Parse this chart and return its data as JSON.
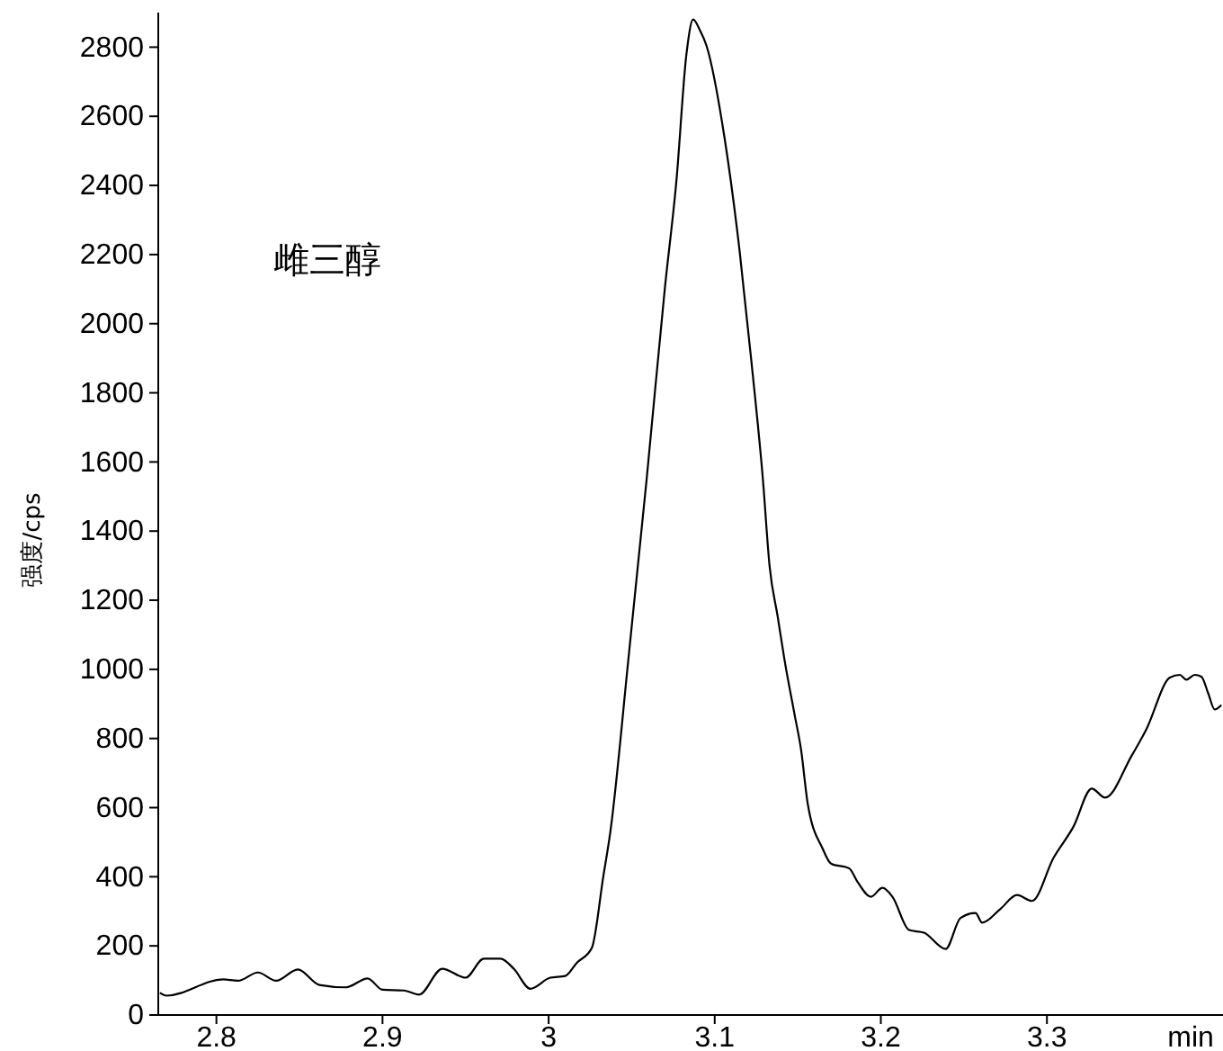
{
  "chart_data": {
    "type": "line",
    "title": "雌三醇",
    "xlabel": "min",
    "ylabel": "强度/cps",
    "x": [
      2.766,
      2.77,
      2.804,
      2.813,
      2.825,
      2.836,
      2.849,
      2.862,
      2.878,
      2.891,
      2.9,
      2.913,
      2.922,
      2.936,
      2.95,
      2.961,
      2.971,
      2.979,
      2.989,
      3.001,
      3.01,
      3.017,
      3.026,
      3.033,
      3.037,
      3.048,
      3.059,
      3.07,
      3.077,
      3.083,
      3.087,
      3.091,
      3.095,
      3.106,
      3.115,
      3.122,
      3.129,
      3.133,
      3.138,
      3.142,
      3.148,
      3.152,
      3.156,
      3.165,
      3.17,
      3.181,
      3.186,
      3.194,
      3.201,
      3.207,
      3.217,
      3.226,
      3.239,
      3.248,
      3.257,
      3.261,
      3.272,
      3.282,
      3.291,
      3.304,
      3.316,
      3.327,
      3.335,
      3.351,
      3.36,
      3.374,
      3.38,
      3.384,
      3.389,
      3.393,
      3.397,
      3.401,
      3.405
    ],
    "series": [
      {
        "color": "#000000",
        "values": [
          64,
          56,
          103,
          99,
          123,
          99,
          132,
          87,
          80,
          106,
          73,
          71,
          59,
          134,
          108,
          163,
          163,
          134,
          76,
          108,
          113,
          151,
          194,
          403,
          524,
          1028,
          1549,
          2104,
          2417,
          2781,
          2880,
          2850,
          2805,
          2535,
          2210,
          1895,
          1550,
          1300,
          1150,
          1028,
          871,
          767,
          611,
          481,
          438,
          424,
          385,
          342,
          368,
          342,
          246,
          238,
          191,
          281,
          295,
          267,
          307,
          347,
          330,
          455,
          545,
          655,
          629,
          750,
          828,
          976,
          984,
          970,
          984,
          979,
          932,
          884,
          897
        ]
      }
    ],
    "xlim": [
      2.765,
      3.406
    ],
    "ylim": [
      0,
      2900
    ],
    "xticks": [
      2.8,
      2.9,
      3,
      3.1,
      3.2,
      3.3
    ],
    "yticks": [
      0,
      200,
      400,
      600,
      800,
      1000,
      1200,
      1400,
      1600,
      1800,
      2000,
      2200,
      2400,
      2600,
      2800
    ],
    "line_style": "solid"
  }
}
